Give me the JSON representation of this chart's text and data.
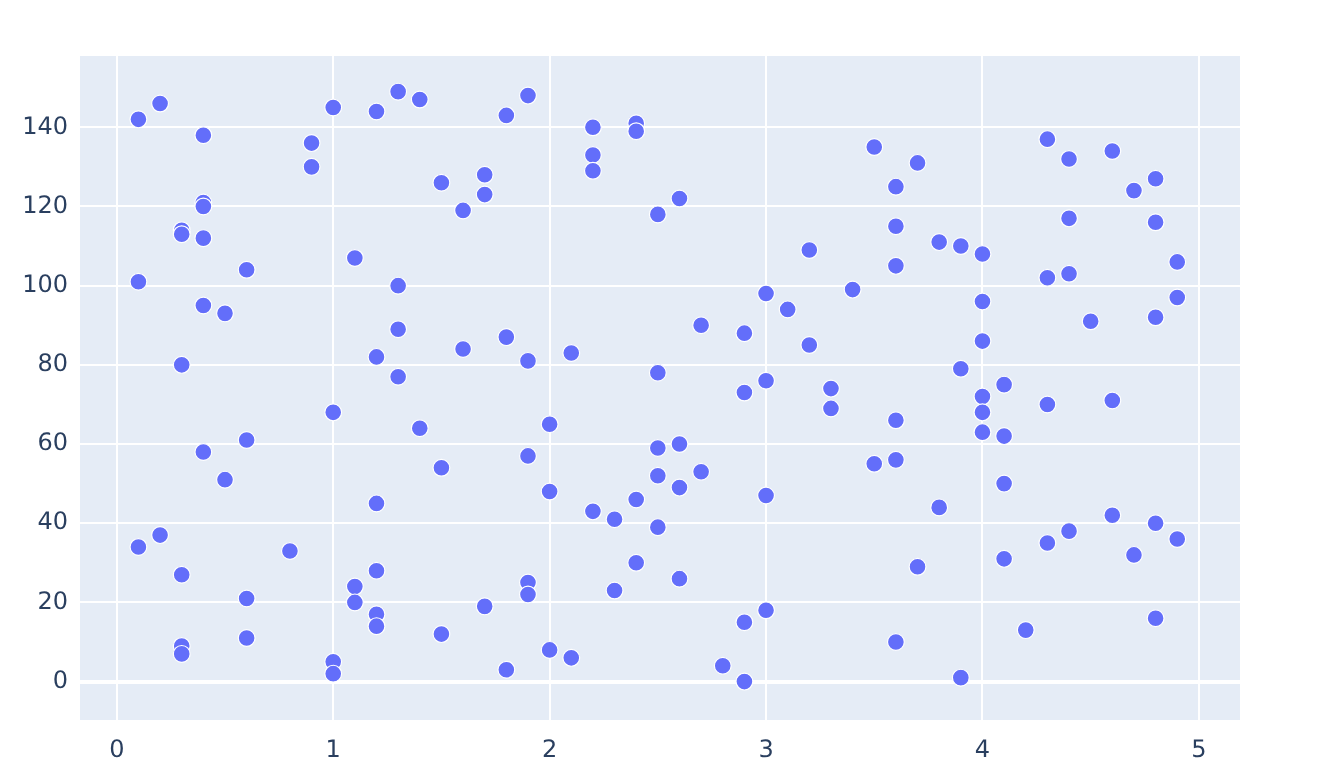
{
  "chart_data": {
    "type": "scatter",
    "color": "#636efa",
    "marker": "circle",
    "grid": true,
    "xlim": [
      -0.17,
      5.19
    ],
    "ylim": [
      -9.7,
      158
    ],
    "xticks": [
      0,
      1,
      2,
      3,
      4,
      5
    ],
    "yticks": [
      0,
      20,
      40,
      60,
      80,
      100,
      120,
      140
    ],
    "x": [
      0.1,
      0.1,
      0.1,
      0.2,
      0.2,
      0.3,
      0.3,
      0.3,
      0.3,
      0.3,
      0.3,
      0.4,
      0.4,
      0.4,
      0.4,
      0.4,
      0.4,
      0.5,
      0.5,
      0.6,
      0.6,
      0.6,
      0.6,
      0.8,
      0.9,
      0.9,
      1.0,
      1.0,
      1.0,
      1.0,
      1.1,
      1.1,
      1.1,
      1.2,
      1.2,
      1.2,
      1.2,
      1.2,
      1.2,
      1.3,
      1.3,
      1.3,
      1.3,
      1.4,
      1.4,
      1.5,
      1.5,
      1.5,
      1.6,
      1.6,
      1.7,
      1.7,
      1.7,
      1.8,
      1.8,
      1.8,
      1.9,
      1.9,
      1.9,
      1.9,
      1.9,
      2.0,
      2.0,
      2.0,
      2.1,
      2.1,
      2.2,
      2.2,
      2.2,
      2.2,
      2.3,
      2.3,
      2.4,
      2.4,
      2.4,
      2.4,
      2.5,
      2.5,
      2.5,
      2.5,
      2.5,
      2.6,
      2.6,
      2.6,
      2.6,
      2.7,
      2.7,
      2.8,
      2.9,
      2.9,
      2.9,
      2.9,
      3.0,
      3.0,
      3.0,
      3.0,
      3.1,
      3.2,
      3.2,
      3.3,
      3.3,
      3.4,
      3.5,
      3.5,
      3.6,
      3.6,
      3.6,
      3.6,
      3.6,
      3.6,
      3.7,
      3.7,
      3.8,
      3.8,
      3.9,
      3.9,
      3.9,
      4.0,
      4.0,
      4.0,
      4.0,
      4.0,
      4.0,
      4.1,
      4.1,
      4.1,
      4.1,
      4.2,
      4.3,
      4.3,
      4.3,
      4.3,
      4.4,
      4.4,
      4.4,
      4.4,
      4.5,
      4.6,
      4.6,
      4.6,
      4.7,
      4.7,
      4.8,
      4.8,
      4.8,
      4.8,
      4.8,
      4.9,
      4.9,
      4.9
    ],
    "values": [
      142,
      101,
      34,
      146,
      37,
      114,
      113,
      80,
      27,
      9,
      7,
      138,
      121,
      120,
      112,
      95,
      58,
      93,
      51,
      104,
      61,
      21,
      11,
      33,
      136,
      130,
      145,
      68,
      5,
      2,
      107,
      24,
      20,
      144,
      82,
      45,
      17,
      14,
      28,
      149,
      100,
      89,
      77,
      147,
      64,
      126,
      54,
      12,
      119,
      84,
      128,
      123,
      19,
      143,
      87,
      3,
      148,
      81,
      57,
      25,
      22,
      65,
      48,
      8,
      83,
      6,
      140,
      133,
      129,
      43,
      41,
      23,
      141,
      139,
      46,
      30,
      118,
      78,
      59,
      52,
      39,
      122,
      60,
      49,
      26,
      90,
      53,
      4,
      88,
      73,
      15,
      0,
      98,
      76,
      47,
      18,
      94,
      109,
      85,
      74,
      69,
      99,
      135,
      55,
      125,
      115,
      105,
      66,
      56,
      10,
      131,
      29,
      111,
      44,
      110,
      79,
      1,
      108,
      96,
      86,
      72,
      68,
      63,
      75,
      62,
      50,
      31,
      13,
      137,
      102,
      70,
      35,
      132,
      117,
      103,
      38,
      91,
      134,
      71,
      42,
      124,
      32,
      127,
      116,
      92,
      40,
      16,
      106,
      97,
      36
    ]
  }
}
